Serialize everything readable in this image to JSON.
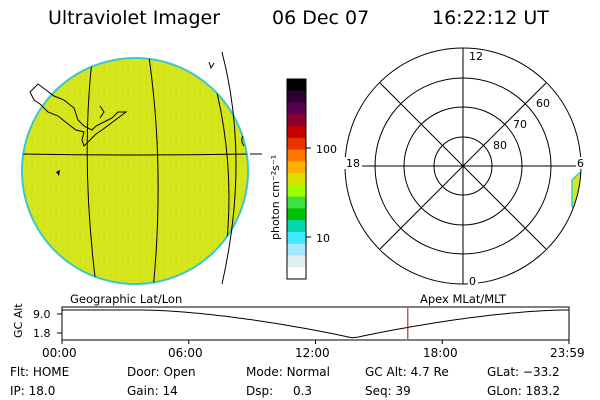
{
  "header": {
    "title": "Ultraviolet Imager",
    "date": "06 Dec 07",
    "time": "16:22:12 UT"
  },
  "colorbar": {
    "label": "photon cm⁻²s⁻¹",
    "tick_labels": [
      "100",
      "10"
    ],
    "colors": [
      "#000000",
      "#2a0033",
      "#5a0050",
      "#8b0030",
      "#c80000",
      "#e83300",
      "#ff7700",
      "#ffb000",
      "#d8e000",
      "#a0ff00",
      "#40e040",
      "#00c000",
      "#00d8b0",
      "#40e8ff",
      "#a8e8ff",
      "#e0f0f0",
      "#ffffff"
    ]
  },
  "polar_plot": {
    "labels": [
      "12",
      "18",
      "6",
      "0",
      "80",
      "70",
      "60"
    ]
  },
  "timeline": {
    "left_label": "Geographic Lat/Lon",
    "right_label": "Apex MLat/MLT",
    "y_axis_label": "GC Alt",
    "y_ticks": [
      "9.0",
      "1.8"
    ],
    "x_ticks": [
      "00:00",
      "06:00",
      "12:00",
      "18:00",
      "23:59"
    ],
    "marker_time_hours": 16.37,
    "marker_color": "#c00000"
  },
  "status": {
    "rows": [
      [
        {
          "k": "Flt:",
          "v": "HOME"
        },
        {
          "k": "Door:",
          "v": "Open"
        },
        {
          "k": "Mode:",
          "v": "Normal"
        },
        {
          "k": "GC Alt:",
          "v": "4.7 Re"
        },
        {
          "k": "GLat:",
          "v": "−33.2"
        }
      ],
      [
        {
          "k": "IP:",
          "v": "18.0"
        },
        {
          "k": "Gain:",
          "v": "14"
        },
        {
          "k": "Dsp:",
          "v": "0.3"
        },
        {
          "k": "Seq:",
          "v": "39"
        },
        {
          "k": "GLon:",
          "v": "183.2"
        }
      ]
    ]
  },
  "colors": {
    "earth_fill": "#d6e51c",
    "earth_edge": "#3cc8c8",
    "aurora_fill": "#d6e51c"
  }
}
